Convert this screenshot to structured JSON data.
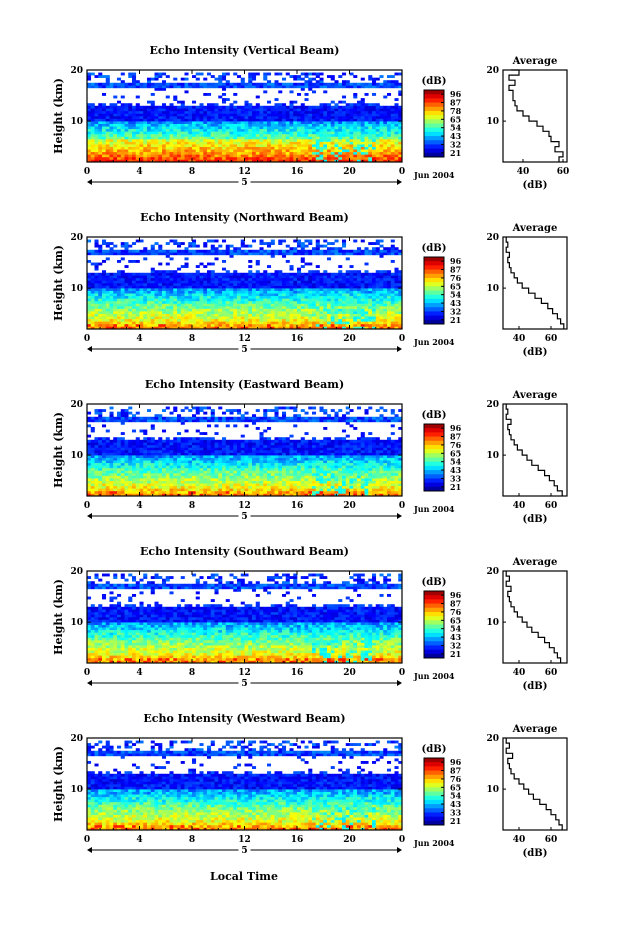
{
  "figure": {
    "xlabel": "Local Time",
    "ylabel": "Height (km)",
    "date_label": "Jun 2004",
    "day_label": "5",
    "average_title": "Average",
    "average_xlabel": "(dB)",
    "colorbar_label": "(dB)"
  },
  "chart_data": [
    {
      "type": "heatmap",
      "title": "Echo Intensity (Vertical Beam)",
      "x_ticks": [
        "0",
        "4",
        "8",
        "12",
        "16",
        "20",
        "0"
      ],
      "xlim": [
        0,
        24
      ],
      "ylim": [
        2,
        20
      ],
      "y_ticks": [
        "20",
        "10"
      ],
      "colorbar": {
        "label": "(dB)",
        "ticks": [
          "96",
          "87",
          "78",
          "65",
          "54",
          "43",
          "32",
          "21"
        ],
        "range": [
          21,
          96
        ]
      },
      "average_profile": {
        "title": "Average",
        "xlabel": "(dB)",
        "x_ticks": [
          "40",
          "60"
        ],
        "xlim": [
          30,
          62
        ],
        "y_ticks": [
          "20",
          "10"
        ],
        "height_km": [
          2,
          3,
          4,
          5,
          6,
          7,
          8,
          9,
          10,
          11,
          12,
          13,
          14,
          15,
          16,
          17,
          18,
          19,
          20
        ],
        "db": [
          58,
          60,
          56,
          58,
          54,
          53,
          50,
          47,
          43,
          40,
          37,
          36,
          35,
          35,
          33,
          36,
          33,
          38,
          34
        ]
      }
    },
    {
      "type": "heatmap",
      "title": "Echo Intensity (Northward Beam)",
      "x_ticks": [
        "0",
        "4",
        "8",
        "12",
        "16",
        "20",
        "0"
      ],
      "xlim": [
        0,
        24
      ],
      "ylim": [
        2,
        20
      ],
      "y_ticks": [
        "20",
        "10"
      ],
      "colorbar": {
        "label": "(dB)",
        "ticks": [
          "96",
          "87",
          "76",
          "65",
          "54",
          "43",
          "32",
          "21"
        ],
        "range": [
          21,
          96
        ]
      },
      "average_profile": {
        "title": "Average",
        "xlabel": "(dB)",
        "x_ticks": [
          "40",
          "60"
        ],
        "xlim": [
          30,
          70
        ],
        "y_ticks": [
          "20",
          "10"
        ],
        "height_km": [
          2,
          3,
          4,
          5,
          6,
          7,
          8,
          9,
          10,
          11,
          12,
          13,
          14,
          15,
          16,
          17,
          18,
          19,
          20
        ],
        "db": [
          68,
          66,
          64,
          61,
          58,
          54,
          50,
          46,
          42,
          39,
          37,
          35,
          34,
          33,
          34,
          32,
          33,
          32,
          32
        ]
      }
    },
    {
      "type": "heatmap",
      "title": "Echo Intensity (Eastward Beam)",
      "x_ticks": [
        "0",
        "4",
        "8",
        "12",
        "16",
        "20",
        "0"
      ],
      "xlim": [
        0,
        24
      ],
      "ylim": [
        2,
        20
      ],
      "y_ticks": [
        "20",
        "10"
      ],
      "colorbar": {
        "label": "(dB)",
        "ticks": [
          "96",
          "87",
          "76",
          "65",
          "54",
          "43",
          "33",
          "21"
        ],
        "range": [
          21,
          96
        ]
      },
      "average_profile": {
        "title": "Average",
        "xlabel": "(dB)",
        "x_ticks": [
          "40",
          "60"
        ],
        "xlim": [
          30,
          70
        ],
        "y_ticks": [
          "20",
          "10"
        ],
        "height_km": [
          2,
          3,
          4,
          5,
          6,
          7,
          8,
          9,
          10,
          11,
          12,
          13,
          14,
          15,
          16,
          17,
          18,
          19,
          20
        ],
        "db": [
          67,
          64,
          62,
          59,
          56,
          52,
          48,
          45,
          42,
          39,
          37,
          35,
          34,
          33,
          35,
          32,
          33,
          32,
          32
        ]
      }
    },
    {
      "type": "heatmap",
      "title": "Echo Intensity (Southward Beam)",
      "x_ticks": [
        "0",
        "4",
        "8",
        "12",
        "16",
        "20",
        "0"
      ],
      "xlim": [
        0,
        24
      ],
      "ylim": [
        2,
        20
      ],
      "y_ticks": [
        "20",
        "10"
      ],
      "colorbar": {
        "label": "(dB)",
        "ticks": [
          "96",
          "87",
          "76",
          "65",
          "54",
          "43",
          "32",
          "21"
        ],
        "range": [
          21,
          96
        ]
      },
      "average_profile": {
        "title": "Average",
        "xlabel": "(dB)",
        "x_ticks": [
          "40",
          "60"
        ],
        "xlim": [
          30,
          70
        ],
        "y_ticks": [
          "20",
          "10"
        ],
        "height_km": [
          2,
          3,
          4,
          5,
          6,
          7,
          8,
          9,
          10,
          11,
          12,
          13,
          14,
          15,
          16,
          17,
          18,
          19,
          20
        ],
        "db": [
          66,
          64,
          62,
          59,
          56,
          52,
          48,
          45,
          42,
          39,
          37,
          35,
          34,
          33,
          35,
          32,
          34,
          32,
          32
        ]
      }
    },
    {
      "type": "heatmap",
      "title": "Echo Intensity (Westward Beam)",
      "x_ticks": [
        "0",
        "4",
        "8",
        "12",
        "16",
        "20",
        "0"
      ],
      "xlim": [
        0,
        24
      ],
      "ylim": [
        2,
        20
      ],
      "y_ticks": [
        "20",
        "10"
      ],
      "colorbar": {
        "label": "(dB)",
        "ticks": [
          "96",
          "87",
          "76",
          "65",
          "54",
          "43",
          "33",
          "21"
        ],
        "range": [
          21,
          96
        ]
      },
      "average_profile": {
        "title": "Average",
        "xlabel": "(dB)",
        "x_ticks": [
          "40",
          "60"
        ],
        "xlim": [
          30,
          70
        ],
        "y_ticks": [
          "20",
          "10"
        ],
        "height_km": [
          2,
          3,
          4,
          5,
          6,
          7,
          8,
          9,
          10,
          11,
          12,
          13,
          14,
          15,
          16,
          17,
          18,
          19,
          20
        ],
        "db": [
          67,
          65,
          63,
          60,
          57,
          53,
          49,
          46,
          43,
          40,
          37,
          35,
          34,
          33,
          36,
          32,
          34,
          32,
          32
        ]
      }
    }
  ]
}
